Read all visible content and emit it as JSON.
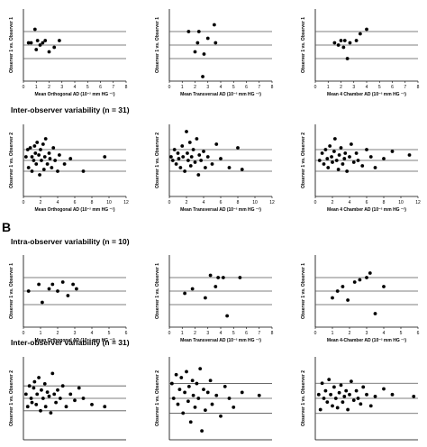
{
  "sections": [
    {
      "letter": "",
      "headings": [
        "",
        "Inter-observer variability (n = 31)"
      ]
    },
    {
      "letter": "B",
      "headings": [
        "Intra-observer variability (n = 10)",
        "Inter-observer variability (n = 31)"
      ]
    }
  ],
  "chart_data": [
    {
      "type": "scatter",
      "xlabel": "Mean Orthogonal AD (10⁻² mm HG ⁻¹)",
      "ylabel": "Observer 1 vs. Observer 1",
      "xlim": [
        0,
        8
      ],
      "xticks": [
        0,
        1,
        2,
        3,
        4,
        5,
        6,
        7,
        8
      ],
      "hlines": [
        0.3,
        0,
        -0.3
      ],
      "ylim": [
        -0.8,
        0.8
      ],
      "x": [
        0.4,
        0.6,
        0.9,
        1.0,
        1.1,
        1.3,
        1.5,
        1.7,
        2.0,
        2.4,
        2.8
      ],
      "y": [
        0.05,
        0.05,
        0.35,
        -0.1,
        0.1,
        0.0,
        0.05,
        0.1,
        -0.15,
        -0.05,
        0.1
      ]
    },
    {
      "type": "scatter",
      "xlabel": "Mean Transversal AD (10⁻² mm HG ⁻¹)",
      "ylabel": "Observer 1 vs. Observer 1",
      "xlim": [
        0,
        8
      ],
      "xticks": [
        0,
        1,
        2,
        3,
        4,
        5,
        6,
        7,
        8
      ],
      "hlines": [
        0.3,
        0,
        -0.3
      ],
      "ylim": [
        -0.8,
        0.8
      ],
      "x": [
        1.5,
        2.0,
        2.2,
        2.3,
        2.6,
        2.7,
        3.0,
        3.5,
        3.6
      ],
      "y": [
        0.3,
        -0.15,
        0.05,
        0.3,
        -0.7,
        -0.2,
        0.15,
        0.45,
        0.05
      ]
    },
    {
      "type": "scatter",
      "xlabel": "Mean 4 Chamber AD (10⁻² mm HG ⁻¹)",
      "ylabel": "Observer 1 vs. Observer 1",
      "xlim": [
        0,
        8
      ],
      "xticks": [
        0,
        1,
        2,
        3,
        4,
        5,
        6,
        7,
        8
      ],
      "hlines": [
        0.3,
        0,
        -0.3
      ],
      "ylim": [
        -0.8,
        0.8
      ],
      "x": [
        1.5,
        1.8,
        2.0,
        2.2,
        2.3,
        2.5,
        2.7,
        3.2,
        3.5,
        4.0
      ],
      "y": [
        0.05,
        0.0,
        0.1,
        -0.05,
        0.1,
        -0.3,
        0.05,
        0.1,
        0.25,
        0.35
      ]
    },
    {
      "type": "scatter",
      "xlabel": "Mean Orthogonal AD (10⁻² mm HG ⁻¹)",
      "ylabel": "Observer 1 vs. Observer 2",
      "xlim": [
        0,
        12
      ],
      "xticks": [
        0,
        2,
        4,
        6,
        8,
        10,
        12
      ],
      "hlines": [
        0.3,
        0,
        -0.3
      ],
      "ylim": [
        -1,
        1
      ],
      "x": [
        0.3,
        0.5,
        0.6,
        0.8,
        1.0,
        1.0,
        1.2,
        1.3,
        1.4,
        1.5,
        1.6,
        1.8,
        1.9,
        2.0,
        2.1,
        2.3,
        2.4,
        2.5,
        2.6,
        2.8,
        3.0,
        3.1,
        3.3,
        3.5,
        3.7,
        4.0,
        4.2,
        4.8,
        5.5,
        7.0,
        9.5
      ],
      "y": [
        0.1,
        0.3,
        -0.2,
        0.35,
        0.1,
        -0.3,
        0.0,
        0.4,
        0.2,
        -0.1,
        0.5,
        0.15,
        -0.4,
        0.3,
        0.0,
        0.45,
        -0.25,
        0.1,
        0.6,
        -0.1,
        0.2,
        0.05,
        -0.2,
        0.35,
        0.0,
        -0.3,
        0.15,
        -0.1,
        0.05,
        -0.3,
        0.1
      ]
    },
    {
      "type": "scatter",
      "xlabel": "Mean Transversal AD (10⁻² mm HG ⁻¹)",
      "ylabel": "Observer 1 vs. Observer 2",
      "xlim": [
        0,
        12
      ],
      "xticks": [
        0,
        2,
        4,
        6,
        8,
        10,
        12
      ],
      "hlines": [
        0.3,
        0,
        -0.3
      ],
      "ylim": [
        -1,
        1
      ],
      "x": [
        0.2,
        0.4,
        0.6,
        0.8,
        1.0,
        1.1,
        1.3,
        1.5,
        1.6,
        1.8,
        2.0,
        2.1,
        2.2,
        2.4,
        2.5,
        2.6,
        2.8,
        3.0,
        3.2,
        3.4,
        3.5,
        3.7,
        4.0,
        4.2,
        4.5,
        5.0,
        5.5,
        6.0,
        7.0,
        8.0,
        8.5
      ],
      "y": [
        0.1,
        0.0,
        0.3,
        -0.1,
        0.2,
        0.05,
        -0.2,
        0.4,
        0.1,
        -0.3,
        0.8,
        0.2,
        0.0,
        0.5,
        -0.15,
        0.1,
        0.3,
        -0.05,
        0.6,
        -0.4,
        0.15,
        0.0,
        0.25,
        -0.2,
        0.1,
        -0.1,
        0.45,
        0.05,
        -0.2,
        0.35,
        -0.25
      ]
    },
    {
      "type": "scatter",
      "xlabel": "Mean 4 Chamber AD (10⁻² mm HG ⁻¹)",
      "ylabel": "Observer 1 vs. Observer 2",
      "xlim": [
        0,
        12
      ],
      "xticks": [
        0,
        2,
        4,
        6,
        8,
        10,
        12
      ],
      "hlines": [
        0.3,
        0,
        -0.3
      ],
      "ylim": [
        -1,
        1
      ],
      "x": [
        0.5,
        0.8,
        1.0,
        1.2,
        1.4,
        1.5,
        1.7,
        1.9,
        2.0,
        2.2,
        2.3,
        2.5,
        2.7,
        2.8,
        3.0,
        3.2,
        3.4,
        3.5,
        3.7,
        4.0,
        4.2,
        4.5,
        4.8,
        5.0,
        5.5,
        6.0,
        6.5,
        7.0,
        8.0,
        9.0,
        11.0
      ],
      "y": [
        0.0,
        0.2,
        -0.1,
        0.3,
        0.05,
        -0.2,
        0.4,
        0.1,
        -0.05,
        0.25,
        0.6,
        0.0,
        -0.25,
        0.15,
        0.35,
        -0.1,
        0.05,
        0.2,
        -0.3,
        0.1,
        0.45,
        -0.05,
        0.2,
        0.0,
        -0.15,
        0.3,
        0.1,
        -0.2,
        0.05,
        0.25,
        0.15
      ]
    },
    {
      "type": "scatter",
      "xlabel": "Mean Orthogonal AD (10⁻² mm HG ⁻¹)",
      "ylabel": "Observer 1 vs. Observer 1",
      "xlim": [
        0,
        6
      ],
      "xticks": [
        0,
        1,
        2,
        3,
        4,
        5,
        6
      ],
      "hlines": [
        0.3,
        0,
        -0.3
      ],
      "ylim": [
        -0.8,
        0.8
      ],
      "x": [
        0.3,
        0.9,
        1.1,
        1.5,
        1.7,
        2.0,
        2.3,
        2.6,
        2.9,
        3.1
      ],
      "y": [
        0.0,
        0.15,
        -0.25,
        0.05,
        0.15,
        0.0,
        0.2,
        -0.1,
        0.15,
        0.05
      ]
    },
    {
      "type": "scatter",
      "xlabel": "Mean Transversal AD (10⁻² mm HG ⁻¹)",
      "ylabel": "Observer 1 vs. Observer 1",
      "xlim": [
        0,
        8
      ],
      "xticks": [
        0,
        1,
        2,
        3,
        4,
        5,
        6,
        7,
        8
      ],
      "hlines": [
        0.3,
        0,
        -0.3
      ],
      "ylim": [
        -0.8,
        0.8
      ],
      "x": [
        1.2,
        1.8,
        2.8,
        3.2,
        3.6,
        3.8,
        4.2,
        4.5,
        5.5
      ],
      "y": [
        -0.05,
        0.05,
        -0.15,
        0.35,
        0.1,
        0.3,
        0.3,
        -0.55,
        0.3
      ]
    },
    {
      "type": "scatter",
      "xlabel": "Mean 4-Chamber AD (10⁻² mm HG ⁻¹)",
      "ylabel": "Observer 1 vs. Observer 1",
      "xlim": [
        0,
        6
      ],
      "xticks": [
        0,
        1,
        2,
        3,
        4,
        5,
        6
      ],
      "hlines": [
        0.3,
        0,
        -0.3
      ],
      "ylim": [
        -0.8,
        0.8
      ],
      "x": [
        1.0,
        1.3,
        1.6,
        1.9,
        2.3,
        2.6,
        3.0,
        3.2,
        3.5,
        4.0
      ],
      "y": [
        -0.15,
        0.0,
        0.1,
        -0.2,
        0.2,
        0.25,
        0.3,
        0.4,
        -0.5,
        0.1
      ]
    },
    {
      "type": "scatter",
      "xlabel": "",
      "ylabel": "Observer 1 vs. Observer 2",
      "xlim": [
        0,
        12
      ],
      "hlines": [
        0.3,
        0,
        -0.3
      ],
      "ylim": [
        -1,
        1
      ],
      "x": [
        0.3,
        0.5,
        0.7,
        0.9,
        1.0,
        1.2,
        1.3,
        1.5,
        1.6,
        1.8,
        2.0,
        2.1,
        2.3,
        2.5,
        2.6,
        2.8,
        3.0,
        3.2,
        3.4,
        3.6,
        3.8,
        4.0,
        4.3,
        4.6,
        5.0,
        5.5,
        6.0,
        6.5,
        7.0,
        8.0,
        9.5
      ],
      "y": [
        0.1,
        -0.2,
        0.3,
        0.0,
        -0.1,
        0.25,
        0.4,
        -0.15,
        0.1,
        0.5,
        -0.3,
        0.2,
        0.0,
        0.35,
        -0.2,
        0.15,
        0.05,
        -0.35,
        0.6,
        0.1,
        -0.1,
        0.2,
        0.0,
        0.3,
        -0.2,
        0.1,
        -0.05,
        0.25,
        0.0,
        -0.15,
        -0.2
      ]
    },
    {
      "type": "scatter",
      "xlabel": "",
      "ylabel": "Observer 1 vs. Observer 2",
      "xlim": [
        0,
        12
      ],
      "hlines": [
        0.5,
        0,
        -0.5
      ],
      "ylim": [
        -1.4,
        1.4
      ],
      "x": [
        0.3,
        0.5,
        0.8,
        1.0,
        1.2,
        1.4,
        1.6,
        1.8,
        2.0,
        2.2,
        2.3,
        2.5,
        2.7,
        2.8,
        3.0,
        3.2,
        3.4,
        3.6,
        3.8,
        4.0,
        4.2,
        4.5,
        4.8,
        5.0,
        5.5,
        6.0,
        6.5,
        7.0,
        7.5,
        8.5,
        10.5
      ],
      "y": [
        0.5,
        0.0,
        0.8,
        -0.2,
        0.3,
        0.7,
        -0.5,
        0.2,
        0.9,
        -0.1,
        0.4,
        -0.8,
        0.6,
        0.1,
        -0.3,
        0.5,
        0.0,
        1.0,
        -1.1,
        0.3,
        -0.4,
        0.2,
        0.6,
        -0.2,
        0.1,
        -0.6,
        0.4,
        0.0,
        -0.3,
        0.2,
        0.1
      ]
    },
    {
      "type": "scatter",
      "xlabel": "",
      "ylabel": "Observer 1 vs. Observer 2",
      "xlim": [
        0,
        12
      ],
      "hlines": [
        0.4,
        0,
        -0.4
      ],
      "ylim": [
        -1.1,
        1.1
      ],
      "x": [
        0.4,
        0.6,
        0.8,
        1.0,
        1.2,
        1.4,
        1.6,
        1.8,
        2.0,
        2.2,
        2.4,
        2.6,
        2.8,
        3.0,
        3.2,
        3.4,
        3.6,
        3.8,
        4.0,
        4.2,
        4.5,
        4.8,
        5.0,
        5.3,
        5.6,
        6.0,
        6.5,
        7.0,
        8.0,
        9.0,
        11.5
      ],
      "y": [
        0.1,
        -0.3,
        0.4,
        0.0,
        0.2,
        -0.1,
        0.5,
        0.1,
        -0.2,
        0.3,
        0.0,
        -0.25,
        0.15,
        0.35,
        -0.1,
        0.05,
        0.2,
        -0.3,
        0.1,
        0.45,
        -0.05,
        0.2,
        0.0,
        -0.15,
        0.3,
        0.1,
        -0.2,
        0.05,
        0.25,
        0.1,
        0.05
      ]
    }
  ]
}
